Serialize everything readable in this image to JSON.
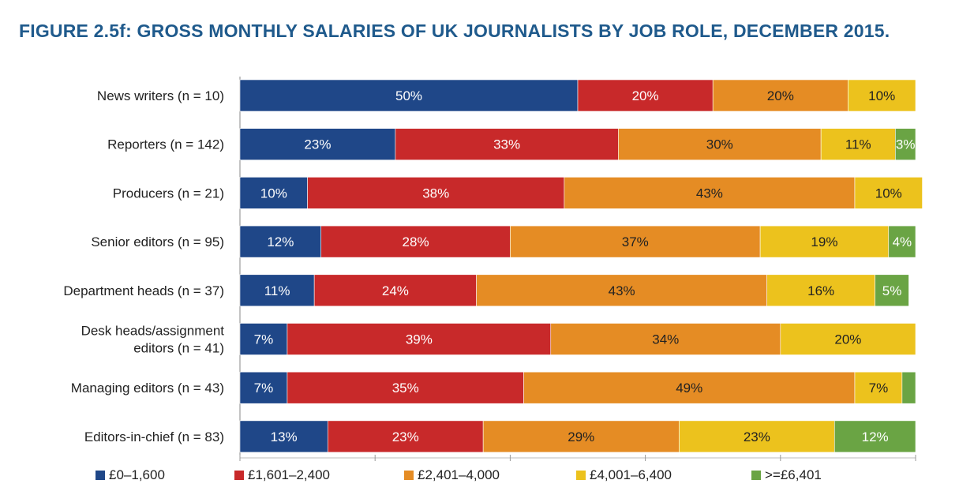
{
  "chart_data": {
    "type": "bar",
    "orientation": "horizontal",
    "stacked": true,
    "title": "FIGURE 2.5f: GROSS MONTHLY SALARIES OF UK JOURNALISTS BY JOB ROLE, DECEMBER 2015.",
    "categories": [
      "News writers (n = 10)",
      "Reporters (n = 142)",
      "Producers (n = 21)",
      "Senior editors (n = 95)",
      "Department heads (n = 37)",
      "Desk heads/assignment editors (n = 41)",
      "Managing editors (n = 43)",
      "Editors-in-chief (n = 83)"
    ],
    "series": [
      {
        "name": "£0–1,600",
        "color": "#1f4788",
        "values": [
          50,
          23,
          10,
          12,
          11,
          7,
          7,
          13
        ],
        "labels": [
          "50%",
          "23%",
          "10%",
          "12%",
          "11%",
          "7%",
          "7%",
          "13%"
        ]
      },
      {
        "name": "£1,601–2,400",
        "color": "#c8292a",
        "values": [
          20,
          33,
          38,
          28,
          24,
          39,
          35,
          23
        ],
        "labels": [
          "20%",
          "33%",
          "38%",
          "28%",
          "24%",
          "39%",
          "35%",
          "23%"
        ]
      },
      {
        "name": "£2,401–4,000",
        "color": "#e58c24",
        "values": [
          20,
          30,
          43,
          37,
          43,
          34,
          49,
          29
        ],
        "labels": [
          "20%",
          "30%",
          "43%",
          "37%",
          "43%",
          "34%",
          "49%",
          "29%"
        ]
      },
      {
        "name": "£4,001–6,400",
        "color": "#ecc21d",
        "values": [
          10,
          11,
          10,
          19,
          16,
          20,
          7,
          23
        ],
        "labels": [
          "10%",
          "11%",
          "10%",
          "19%",
          "16%",
          "20%",
          "7%",
          "23%"
        ]
      },
      {
        "name": ">=£6,401",
        "color": "#6aa444",
        "values": [
          0,
          3,
          0,
          4,
          5,
          0,
          2,
          12
        ],
        "labels": [
          "",
          "3%",
          "",
          "4%",
          "5%",
          "",
          "",
          "12%"
        ]
      }
    ],
    "xlim": [
      0,
      100
    ],
    "legend_position": "bottom"
  }
}
